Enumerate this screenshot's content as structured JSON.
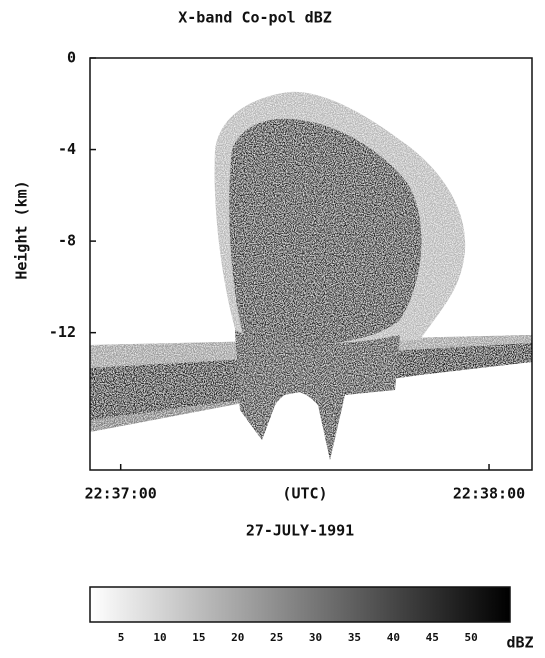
{
  "chart_data": {
    "type": "heatmap",
    "title": "X-band Co-pol dBZ",
    "y_label": "Height (km)",
    "x_label": "(UTC)",
    "date": "27-JULY-1991",
    "ylim": [
      -18,
      0
    ],
    "yticks": [
      0,
      -4,
      -8,
      -12
    ],
    "xlim": [
      81415,
      81487
    ],
    "xticks": [
      {
        "value": 81420,
        "label": "22:37:00"
      },
      {
        "value": 81480,
        "label": "22:38:00"
      }
    ],
    "colorbar": {
      "lim": [
        1,
        55
      ],
      "ticks": [
        5,
        10,
        15,
        20,
        25,
        30,
        35,
        40,
        45,
        50
      ],
      "label": "dBZ",
      "colors": [
        "#ffffff",
        "#000000"
      ]
    },
    "grid": false
  }
}
